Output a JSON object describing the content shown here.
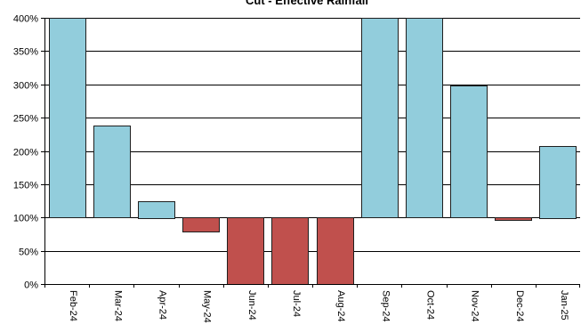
{
  "chart_data": {
    "type": "bar",
    "title": "Cut - Effective Rainfall",
    "xlabel": "",
    "ylabel": "",
    "baseline": 100,
    "ylim": [
      0,
      400
    ],
    "y_ticks": [
      0,
      50,
      100,
      150,
      200,
      250,
      300,
      350,
      400
    ],
    "y_tick_labels": [
      "0%",
      "50%",
      "100%",
      "150%",
      "200%",
      "250%",
      "300%",
      "350%",
      "400%"
    ],
    "grid": true,
    "legend": "none",
    "categories": [
      "Feb-24",
      "Mar-24",
      "Apr-24",
      "May-24",
      "Jun-24",
      "Jul-24",
      "Aug-24",
      "Sep-24",
      "Oct-24",
      "Nov-24",
      "Dec-24",
      "Jan-25"
    ],
    "values": [
      400,
      238,
      125,
      78,
      0,
      0,
      0,
      400,
      400,
      298,
      96,
      208
    ],
    "colors": {
      "above": "#92cddc",
      "below": "#c0504d",
      "bar_outline": "#1f1f1f"
    }
  }
}
